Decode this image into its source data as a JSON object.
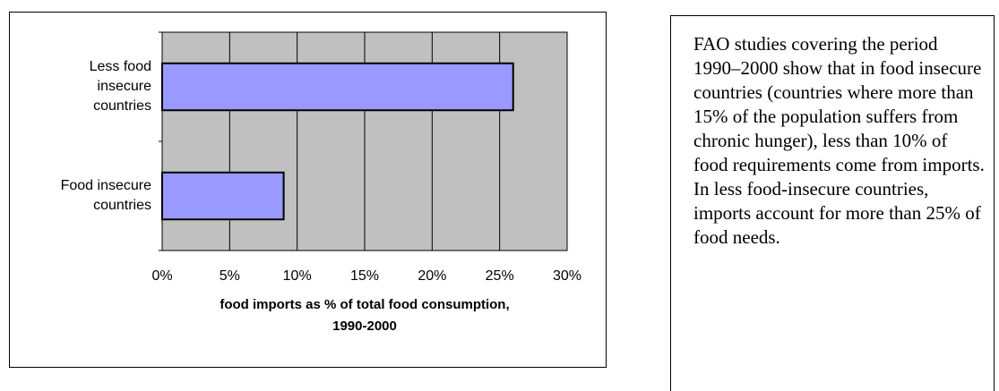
{
  "chart_data": {
    "type": "bar",
    "orientation": "horizontal",
    "categories": [
      [
        "Less food",
        "insecure",
        "countries"
      ],
      [
        "Food insecure",
        "countries"
      ]
    ],
    "values": [
      0.26,
      0.09
    ],
    "xticks": [
      "0%",
      "5%",
      "10%",
      "15%",
      "20%",
      "25%",
      "30%"
    ],
    "xlim": [
      0,
      0.3
    ],
    "xlabel": [
      "food imports as % of total food consumption,",
      "1990-2000"
    ],
    "grid": true,
    "colors": {
      "bar": "#9999ff",
      "plot_bg": "#c0c0c0"
    }
  },
  "note": {
    "text": "FAO studies covering the period 1990–2000 show that in food insecure countries (countries where more than 15% of the population suffers from chronic hunger), less than 10% of food requirements come from imports.  In less food-insecure countries, imports account for more than 25% of food needs."
  }
}
